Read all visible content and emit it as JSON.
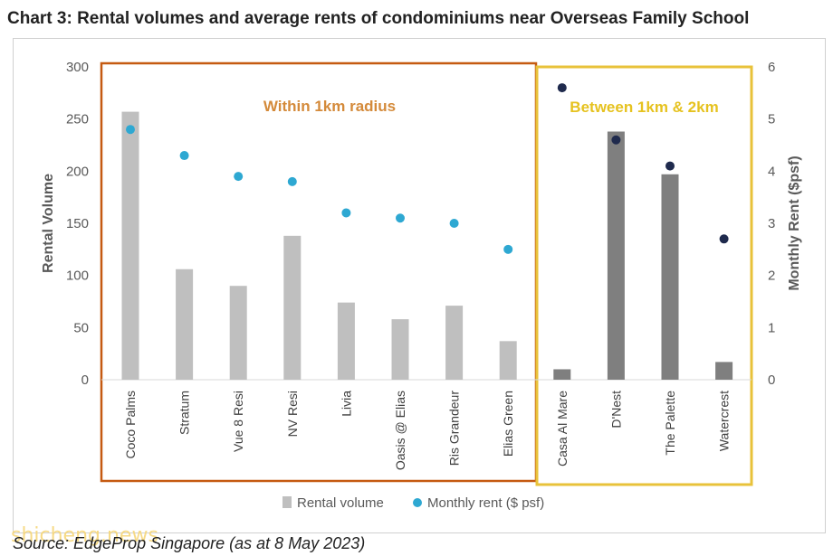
{
  "title": "Chart 3: Rental volumes and average rents of condominiums near Overseas Family School",
  "source": "Source: EdgeProp Singapore (as at 8 May 2023)",
  "watermark": "shicheng.news",
  "colors": {
    "bar_within": "#bfbfbf",
    "bar_between": "#7f7f7f",
    "dot_within": "#2ea8d2",
    "dot_between": "#1f2a4d",
    "box_within": "#c55a11",
    "box_between": "#e8c23a",
    "label_within": "#d48a3a",
    "label_between": "#e6c21f"
  },
  "regions": {
    "within_label": "Within 1km radius",
    "between_label": "Between 1km & 2km"
  },
  "chart_data": {
    "type": "bar",
    "categories": [
      "Coco Palms",
      "Stratum",
      "Vue 8 Resi",
      "NV Resi",
      "Livia",
      "Oasis @ Elias",
      "Ris Grandeur",
      "Elias Green",
      "Casa Al Mare",
      "D'Nest",
      "The Palette",
      "Watercrest"
    ],
    "group": [
      "within",
      "within",
      "within",
      "within",
      "within",
      "within",
      "within",
      "within",
      "between",
      "between",
      "between",
      "between"
    ],
    "series": [
      {
        "name": "Rental volume",
        "type": "bar",
        "axis": "left",
        "values": [
          257,
          106,
          90,
          138,
          74,
          58,
          71,
          37,
          10,
          238,
          197,
          17
        ]
      },
      {
        "name": "Monthly rent ($ psf)",
        "type": "scatter",
        "axis": "right",
        "values": [
          4.8,
          4.3,
          3.9,
          3.8,
          3.2,
          3.1,
          3.0,
          2.5,
          5.6,
          4.6,
          4.1,
          2.7
        ]
      }
    ],
    "ylabel": "Rental Volume",
    "y2label": "Monthly Rent ($psf)",
    "ylim": [
      0,
      300
    ],
    "y2lim": [
      0,
      6
    ],
    "yticks": [
      "0",
      "50",
      "100",
      "150",
      "200",
      "250",
      "300"
    ],
    "y2ticks": [
      "0",
      "1",
      "2",
      "3",
      "4",
      "5",
      "6"
    ],
    "legend_position": "bottom",
    "grid": false
  }
}
